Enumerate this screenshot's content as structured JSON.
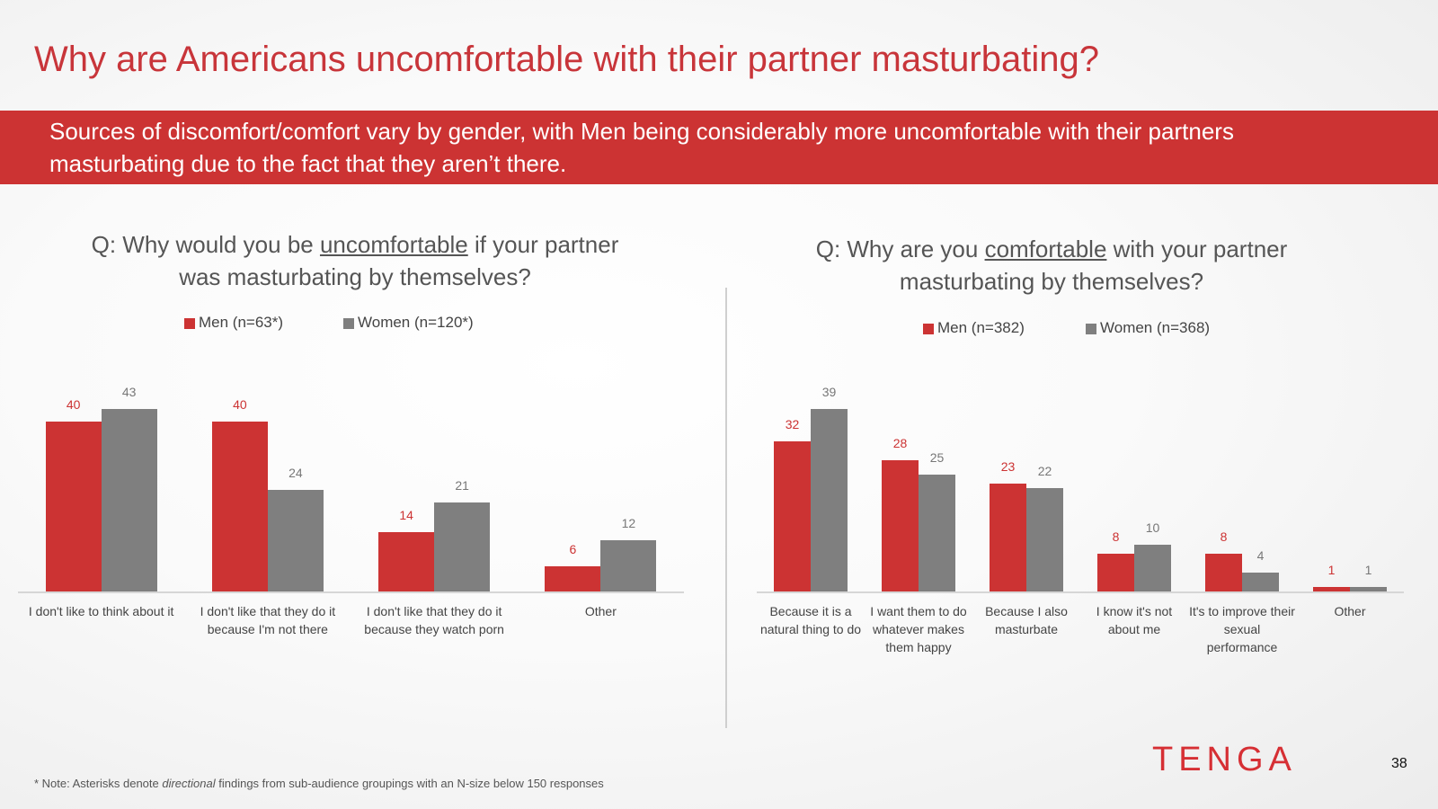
{
  "title": "Why are Americans uncomfortable with their partner masturbating?",
  "subtitle": "Sources of discomfort/comfort vary by gender, with Men being considerably more uncomfortable with their partners masturbating due to the fact that they aren’t there.",
  "note": [
    "* Note: Asterisks denote ",
    "directional",
    " findings from sub-audience groupings with an N-size below 150 responses"
  ],
  "logo": "TENGA",
  "page_number": "38",
  "chart_data": [
    {
      "type": "bar",
      "title": [
        "Q: Why would you be ",
        "uncomfortable",
        " if your partner was masturbating by themselves?"
      ],
      "categories": [
        "I don't like to think about it",
        "I don't like that they do it because I'm not there",
        "I don't like that they do it because they watch porn",
        "Other"
      ],
      "series": [
        {
          "name": "Men (n=63*)",
          "color": "#cc3333",
          "values": [
            40,
            40,
            14,
            6
          ]
        },
        {
          "name": "Women (n=120*)",
          "color": "#7f7f7f",
          "values": [
            43,
            24,
            21,
            12
          ]
        }
      ]
    },
    {
      "type": "bar",
      "title": [
        "Q: Why are you ",
        "comfortable",
        " with your partner masturbating by themselves?"
      ],
      "categories": [
        "Because it is a natural thing to do",
        "I want them to do whatever makes them happy",
        "Because I also masturbate",
        "I know it's not about me",
        "It's to improve their sexual performance",
        "Other"
      ],
      "series": [
        {
          "name": "Men (n=382)",
          "color": "#cc3333",
          "values": [
            32,
            28,
            23,
            8,
            8,
            1
          ]
        },
        {
          "name": "Women (n=368)",
          "color": "#7f7f7f",
          "values": [
            39,
            25,
            22,
            10,
            4,
            1
          ]
        }
      ]
    }
  ]
}
